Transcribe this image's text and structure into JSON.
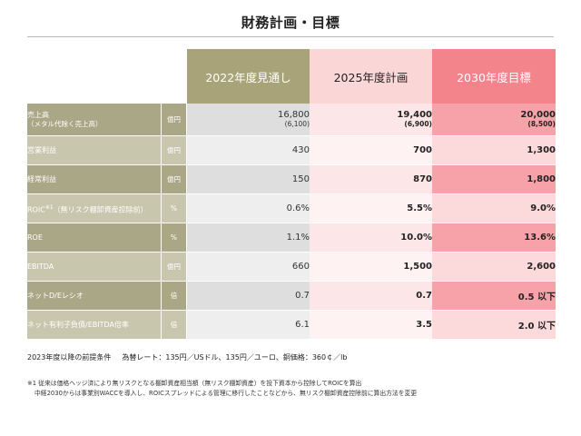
{
  "title": "財務計画・目標",
  "columns": [
    "2022年度見通し",
    "2025年度計画",
    "2030年度目標"
  ],
  "rows": [
    {
      "label": "売上高",
      "sublabel": "（メタル代除く売上高）",
      "unit": "億円",
      "v1": "16,800",
      "v1_sub": "(6,100)",
      "v2": "19,400",
      "v2_sub": "(6,900)",
      "v3": "20,000",
      "v3_sub": "(8,500)"
    },
    {
      "label": "営業利益",
      "unit": "億円",
      "v1": "430",
      "v2": "700",
      "v3": "1,300"
    },
    {
      "label": "経常利益",
      "unit": "億円",
      "v1": "150",
      "v2": "870",
      "v3": "1,800"
    },
    {
      "label": "ROIC",
      "label_sup": "※1",
      "label_tail": "（無リスク棚卸資産控除前）",
      "unit": "%",
      "v1": "0.6%",
      "v2": "5.5%",
      "v3": "9.0%"
    },
    {
      "label": "ROE",
      "unit": "%",
      "v1": "1.1%",
      "v2": "10.0%",
      "v3": "13.6%"
    },
    {
      "label": "EBITDA",
      "unit": "億円",
      "v1": "660",
      "v2": "1,500",
      "v3": "2,600"
    },
    {
      "label": "ネットD/Eレシオ",
      "unit": "倍",
      "v1": "0.7",
      "v2": "0.7",
      "v3": "0.5 以下"
    },
    {
      "label": "ネット有利子負債/EBITDA倍率",
      "unit": "倍",
      "v1": "6.1",
      "v2": "3.5",
      "v3": "2.0 以下"
    }
  ],
  "assumptions": {
    "label": "2023年度以降の前提条件",
    "text": "為替レート：135円／USドル、135円／ユーロ、銅価格：360￠／lb"
  },
  "notes": [
    "※1 従来は価格ヘッジ済により無リスクとなる棚卸資産相当額（無リスク棚卸資産）を投下資本から控除してROICを算出",
    "中経2030からは事業別WACCを導入し、ROICスプレッドによる管理に移行したことなどから、無リスク棚卸資産控除前に算出方法を変更"
  ]
}
